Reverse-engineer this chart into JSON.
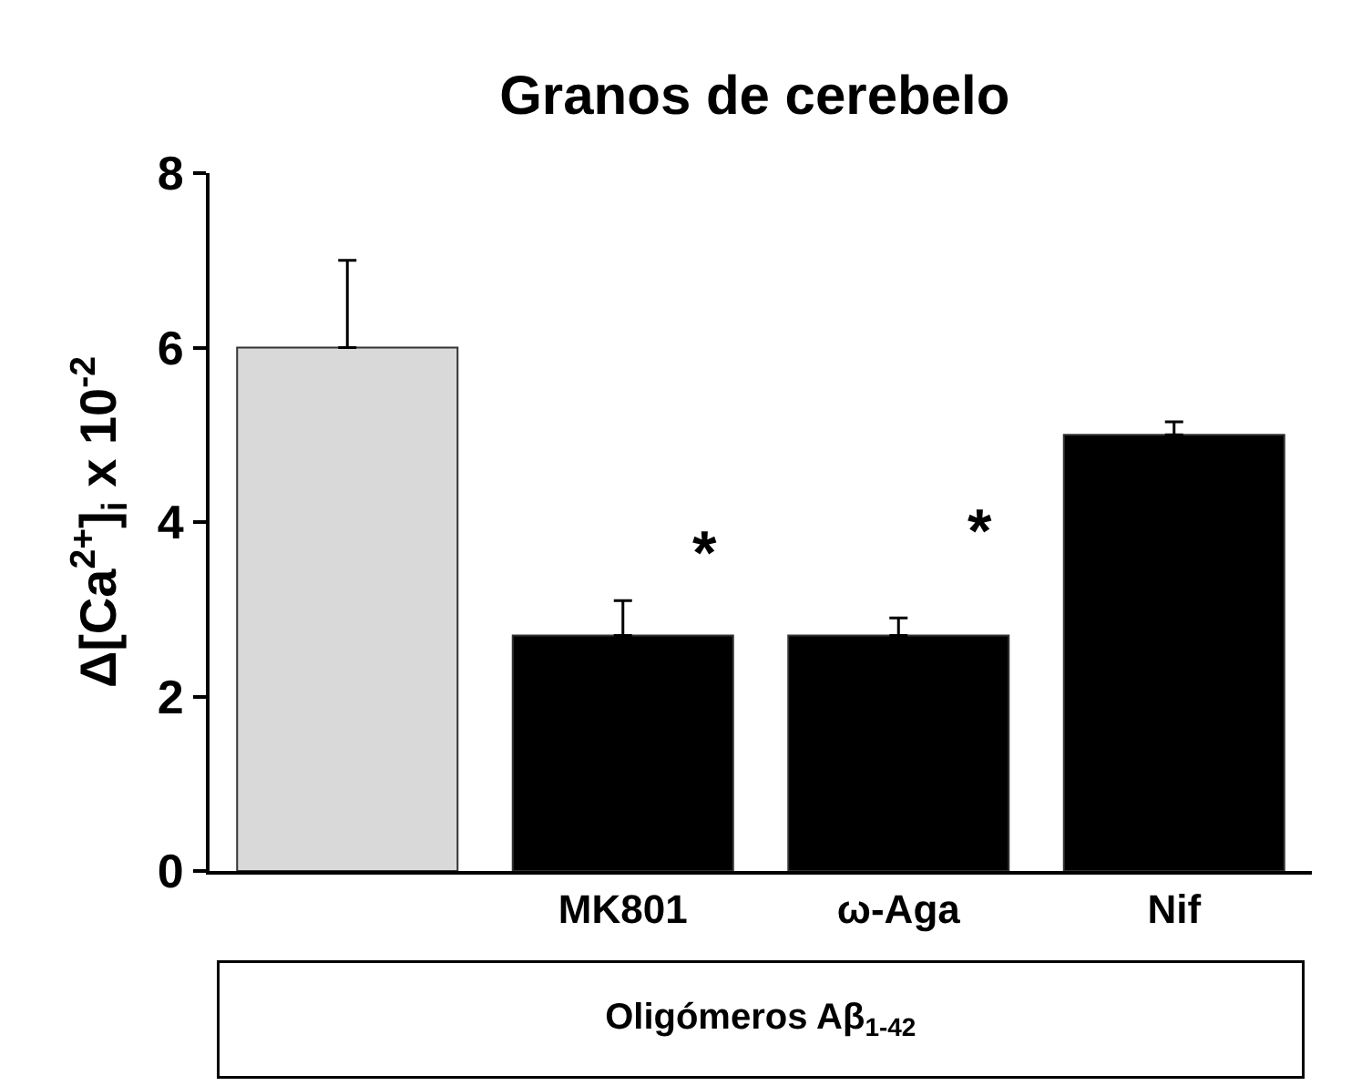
{
  "chart_data": {
    "type": "bar",
    "title": "Granos de cerebelo",
    "ylabel": "Δ[Ca$^{2+}$]$_{i}$ x 10$^{-2}$",
    "categories": [
      null,
      "MK801",
      "ω-Aga",
      "Nif"
    ],
    "values": [
      6.0,
      2.7,
      2.7,
      5.0
    ],
    "colors": [
      "#d9d9d9",
      "#000000",
      "#000000",
      "#000000"
    ],
    "errors": [
      [
        6.0,
        7.0
      ],
      [
        2.7,
        3.1
      ],
      [
        2.7,
        2.9
      ],
      [
        5.0,
        5.15
      ]
    ],
    "ylim": [
      0,
      8
    ],
    "yticks": [
      0,
      2,
      4,
      6,
      8
    ],
    "grid": false,
    "legend": false,
    "annotations": [
      "*",
      "*",
      "Oligómeros Aβ$_{1-42}$"
    ]
  }
}
